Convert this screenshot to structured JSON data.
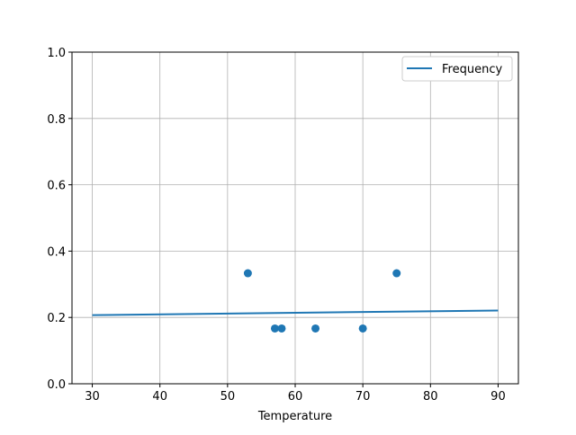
{
  "chart_data": {
    "type": "scatter",
    "title": "",
    "xlabel": "Temperature",
    "ylabel": "",
    "xlim": [
      27,
      93
    ],
    "ylim": [
      0,
      1.0
    ],
    "grid": true,
    "legend_placement": "top-right",
    "xticks": [
      30,
      40,
      50,
      60,
      70,
      80,
      90
    ],
    "yticks": [
      0.0,
      0.2,
      0.4,
      0.6,
      0.8,
      1.0
    ],
    "xtick_labels": [
      "30",
      "40",
      "50",
      "60",
      "70",
      "80",
      "90"
    ],
    "ytick_labels": [
      "0.0",
      "0.2",
      "0.4",
      "0.6",
      "0.8",
      "1.0"
    ],
    "color": "#1f77b4",
    "points": {
      "x": [
        53,
        57,
        58,
        63,
        70,
        75
      ],
      "y": [
        0.3333,
        0.1667,
        0.1667,
        0.1667,
        0.1667,
        0.3333
      ]
    },
    "line": {
      "name": "Frequency",
      "x": [
        30,
        90
      ],
      "y": [
        0.207,
        0.221
      ]
    }
  }
}
